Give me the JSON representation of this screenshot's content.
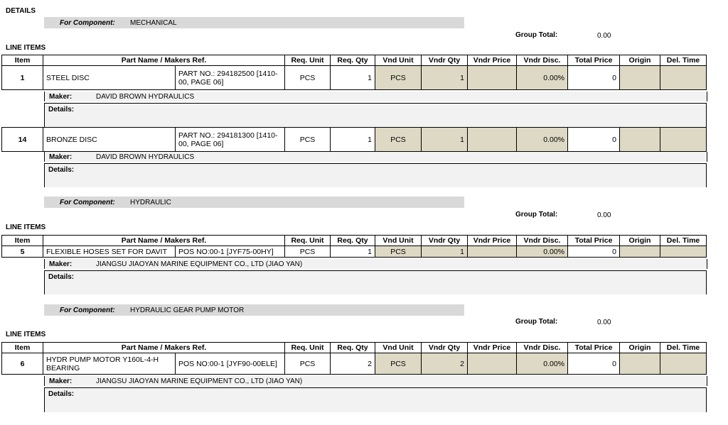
{
  "details_title": "DETAILS",
  "component_label": "For Component:",
  "group_total_label": "Group Total:",
  "line_items_title": "LINE ITEMS",
  "maker_label": "Maker:",
  "details_label": "Details:",
  "headers": [
    "Item",
    "Part Name / Makers Ref.",
    "Req. Unit",
    "Req. Qty",
    "Vnd Unit",
    "Vndr Qty",
    "Vndr Price",
    "Vndr Disc.",
    "Total Price",
    "Origin",
    "Del. Time"
  ],
  "groups": [
    {
      "component": "MECHANICAL",
      "group_total": "0.00",
      "items": [
        {
          "item": "1",
          "part_name": "STEEL DISC",
          "makers_ref": "PART NO.: 294182500 [1410-00, PAGE 06]",
          "req_unit": "PCS",
          "req_qty": "1",
          "vnd_unit": "PCS",
          "vndr_qty": "1",
          "vndr_price": "",
          "vndr_disc": "0.00%",
          "total_price": "0",
          "origin": "",
          "del_time": "",
          "maker": "DAVID BROWN HYDRAULICS"
        },
        {
          "item": "14",
          "part_name": "BRONZE DISC",
          "makers_ref": "PART NO.: 294181300 [1410-00, PAGE 06]",
          "req_unit": "PCS",
          "req_qty": "1",
          "vnd_unit": "PCS",
          "vndr_qty": "1",
          "vndr_price": "",
          "vndr_disc": "0.00%",
          "total_price": "0",
          "origin": "",
          "del_time": "",
          "maker": "DAVID BROWN HYDRAULICS"
        }
      ]
    },
    {
      "component": "HYDRAULIC",
      "group_total": "0.00",
      "items": [
        {
          "item": "5",
          "part_name": "FLEXIBLE HOSES SET FOR DAVIT",
          "makers_ref": "POS NO:00-1 [JYF75-00HY]",
          "req_unit": "PCS",
          "req_qty": "1",
          "vnd_unit": "PCS",
          "vndr_qty": "1",
          "vndr_price": "",
          "vndr_disc": "0.00%",
          "total_price": "0",
          "origin": "",
          "del_time": "",
          "maker": "JIANGSU JIAOYAN MARINE EQUIPMENT CO., LTD (JIAO YAN)"
        }
      ]
    },
    {
      "component": "HYDRAULIC GEAR PUMP MOTOR",
      "group_total": "0.00",
      "items": [
        {
          "item": "6",
          "part_name": "HYDR PUMP MOTOR Y160L-4-H BEARING",
          "makers_ref": "POS NO:00-1 [JYF90-00ELE]",
          "req_unit": "PCS",
          "req_qty": "2",
          "vnd_unit": "PCS",
          "vndr_qty": "2",
          "vndr_price": "",
          "vndr_disc": "0.00%",
          "total_price": "0",
          "origin": "",
          "del_time": "",
          "maker": "JIANGSU JIAOYAN MARINE EQUIPMENT CO., LTD (JIAO YAN)"
        }
      ]
    }
  ]
}
